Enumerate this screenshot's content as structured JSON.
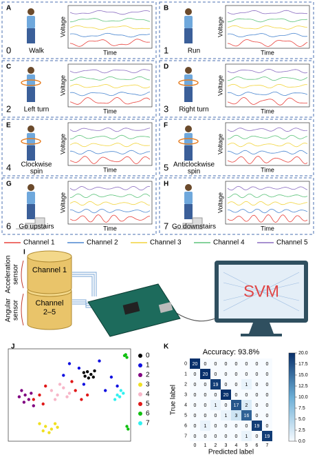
{
  "panels": [
    {
      "letter": "A",
      "number": "0",
      "label": [
        "Walk"
      ]
    },
    {
      "letter": "B",
      "number": "1",
      "label": [
        "Run"
      ]
    },
    {
      "letter": "C",
      "number": "2",
      "label": [
        "Left turn"
      ]
    },
    {
      "letter": "D",
      "number": "3",
      "label": [
        "Right turn"
      ]
    },
    {
      "letter": "E",
      "number": "4",
      "label": [
        "Clockwise",
        "spin"
      ]
    },
    {
      "letter": "F",
      "number": "5",
      "label": [
        "Anticlockwise",
        "spin"
      ]
    },
    {
      "letter": "G",
      "number": "6",
      "label": [
        "Go upstairs"
      ]
    },
    {
      "letter": "H",
      "number": "7",
      "label": [
        "Go downstairs"
      ]
    }
  ],
  "plot_labels": {
    "y": "Voltage",
    "x": "Time"
  },
  "channels": [
    {
      "name": "Channel 1",
      "color": "#e8403a"
    },
    {
      "name": "Channel 2",
      "color": "#4a86d0"
    },
    {
      "name": "Channel 3",
      "color": "#f2d43c"
    },
    {
      "name": "Channel 4",
      "color": "#5cc37a"
    },
    {
      "name": "Channel 5",
      "color": "#8a6cc0"
    }
  ],
  "setup": {
    "letter": "I",
    "top_sensor": "Channel 1",
    "bottom_sensor": [
      "Channel",
      "2–5"
    ],
    "acceleration": [
      "Acceleration",
      "sensor"
    ],
    "angular": [
      "Angular",
      "sensor"
    ],
    "model": "SVM"
  },
  "chart_data": [
    {
      "type": "scatter",
      "panel_label": "J",
      "xlim": [
        0,
        100
      ],
      "ylim": [
        0,
        100
      ],
      "series": [
        {
          "name": "0",
          "color": "#000000",
          "x": [
            65,
            68,
            63,
            71,
            66,
            62,
            70
          ],
          "y": [
            76,
            73,
            71,
            77,
            69,
            75,
            70
          ]
        },
        {
          "name": "1",
          "color": "#1010e0",
          "x": [
            50,
            58,
            75,
            85,
            90,
            45,
            80,
            62
          ],
          "y": [
            85,
            80,
            88,
            70,
            60,
            72,
            55,
            62
          ]
        },
        {
          "name": "2",
          "color": "#800080",
          "x": [
            10,
            13,
            8,
            16,
            12,
            18,
            20
          ],
          "y": [
            55,
            50,
            48,
            45,
            42,
            52,
            38
          ]
        },
        {
          "name": "3",
          "color": "#f0e020",
          "x": [
            30,
            35,
            28,
            38,
            33,
            40,
            25
          ],
          "y": [
            15,
            12,
            10,
            18,
            8,
            14,
            18
          ]
        },
        {
          "name": "4",
          "color": "#f7b6c8",
          "x": [
            35,
            40,
            45,
            38,
            48,
            42,
            50
          ],
          "y": [
            55,
            50,
            58,
            45,
            48,
            62,
            52
          ]
        },
        {
          "name": "5",
          "color": "#e01818",
          "x": [
            25,
            30,
            55,
            60,
            28,
            52,
            65,
            20
          ],
          "y": [
            50,
            60,
            55,
            45,
            40,
            65,
            50,
            45
          ]
        },
        {
          "name": "6",
          "color": "#10c010",
          "x": [
            97,
            98,
            99,
            98,
            96
          ],
          "y": [
            95,
            92,
            12,
            15,
            94
          ]
        },
        {
          "name": "7",
          "color": "#30f0f0",
          "x": [
            90,
            92,
            88,
            95,
            93
          ],
          "y": [
            50,
            48,
            45,
            52,
            55
          ]
        }
      ]
    },
    {
      "type": "heatmap",
      "panel_label": "K",
      "title": "Accuracy: 93.8%",
      "x_label": "Predicted label",
      "y_label": "True label",
      "categories": [
        "0",
        "1",
        "2",
        "3",
        "4",
        "5",
        "6",
        "7"
      ],
      "values": [
        [
          20,
          0,
          0,
          0,
          0,
          0,
          0,
          0
        ],
        [
          0,
          20,
          0,
          0,
          0,
          0,
          0,
          0
        ],
        [
          0,
          0,
          19,
          0,
          0,
          1,
          0,
          0
        ],
        [
          0,
          0,
          0,
          20,
          0,
          0,
          0,
          0
        ],
        [
          0,
          0,
          1,
          0,
          17,
          2,
          0,
          0
        ],
        [
          0,
          0,
          0,
          1,
          3,
          16,
          0,
          0
        ],
        [
          0,
          1,
          0,
          0,
          0,
          0,
          19,
          0
        ],
        [
          0,
          0,
          0,
          0,
          0,
          1,
          0,
          19
        ]
      ],
      "clim": [
        0,
        20
      ],
      "cticks": [
        {
          "value": 0,
          "label": "0.0"
        },
        {
          "value": 2.5,
          "label": "2.5"
        },
        {
          "value": 5,
          "label": "5.0"
        },
        {
          "value": 7.5,
          "label": "7.5"
        },
        {
          "value": 10,
          "label": "10.0"
        },
        {
          "value": 12.5,
          "label": "12.5"
        },
        {
          "value": 15,
          "label": "15.0"
        },
        {
          "value": 17.5,
          "label": "17.5"
        },
        {
          "value": 20,
          "label": "20.0"
        }
      ]
    }
  ]
}
